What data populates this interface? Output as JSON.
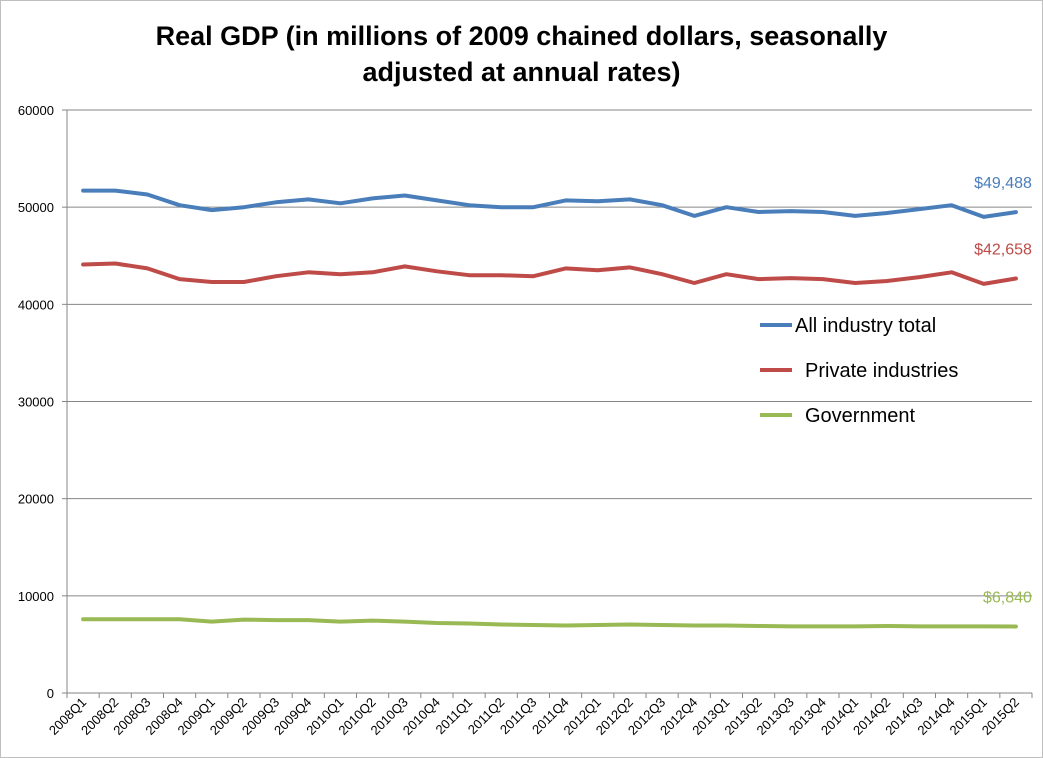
{
  "chart_data": {
    "type": "line",
    "title_line1": "Real GDP (in millions of 2009 chained dollars, seasonally",
    "title_line2": "adjusted at annual rates)",
    "xlabel": "",
    "ylabel": "",
    "ylim": [
      0,
      60000
    ],
    "yticks": [
      0,
      10000,
      20000,
      30000,
      40000,
      50000,
      60000
    ],
    "grid": true,
    "legend_position": "right-middle",
    "categories": [
      "2008Q1",
      "2008Q2",
      "2008Q3",
      "2008Q4",
      "2009Q1",
      "2009Q2",
      "2009Q3",
      "2009Q4",
      "2010Q1",
      "2010Q2",
      "2010Q3",
      "2010Q4",
      "2011Q1",
      "2011Q2",
      "2011Q3",
      "2011Q4",
      "2012Q1",
      "2012Q2",
      "2012Q3",
      "2012Q4",
      "2013Q1",
      "2013Q2",
      "2013Q3",
      "2013Q4",
      "2014Q1",
      "2014Q2",
      "2014Q3",
      "2014Q4",
      "2015Q1",
      "2015Q2"
    ],
    "series": [
      {
        "name": "All industry total",
        "color": "#4a7ebb",
        "end_label": "$49,488",
        "values": [
          51700,
          51700,
          51300,
          50200,
          49700,
          50000,
          50500,
          50800,
          50400,
          50900,
          51200,
          50700,
          50200,
          50000,
          50000,
          50700,
          50600,
          50800,
          50200,
          49100,
          50000,
          49500,
          49600,
          49500,
          49100,
          49400,
          49800,
          50200,
          49000,
          49488
        ]
      },
      {
        "name": "Private industries",
        "color": "#be4b48",
        "end_label": "$42,658",
        "values": [
          44100,
          44200,
          43700,
          42600,
          42300,
          42300,
          42900,
          43300,
          43100,
          43300,
          43900,
          43400,
          43000,
          43000,
          42900,
          43700,
          43500,
          43800,
          43100,
          42200,
          43100,
          42600,
          42700,
          42600,
          42200,
          42400,
          42800,
          43300,
          42100,
          42658
        ]
      },
      {
        "name": "Government",
        "color": "#98b954",
        "end_label": "$6,840",
        "values": [
          7600,
          7600,
          7600,
          7600,
          7350,
          7550,
          7500,
          7500,
          7350,
          7450,
          7350,
          7200,
          7150,
          7050,
          7000,
          6950,
          7000,
          7050,
          7000,
          6950,
          6950,
          6900,
          6850,
          6850,
          6850,
          6900,
          6850,
          6850,
          6850,
          6840
        ]
      }
    ]
  }
}
